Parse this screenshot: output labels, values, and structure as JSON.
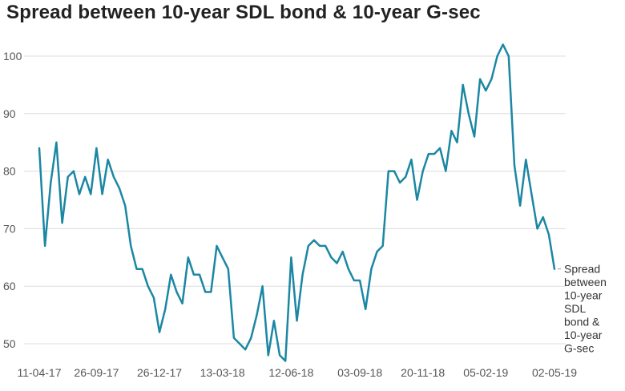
{
  "chart_data": {
    "type": "line",
    "title": "Spread between 10-year SDL bond & 10-year G-sec",
    "xlabel": "",
    "ylabel": "",
    "ylim": [
      45,
      102
    ],
    "yticks": [
      50,
      60,
      70,
      80,
      90,
      100
    ],
    "grid": true,
    "x_tick_labels": [
      "11-04-17",
      "26-09-17",
      "26-12-17",
      "13-03-18",
      "12-06-18",
      "03-09-18",
      "20-11-18",
      "05-02-19",
      "02-05-19"
    ],
    "x_tick_indices": [
      0,
      10,
      21,
      32,
      44,
      56,
      67,
      78,
      90
    ],
    "series": [
      {
        "name": "Spread between 10-year SDL bond & 10-year G-sec",
        "color": "#1b87a3",
        "label_lines": [
          "Spread",
          "between",
          "10-year",
          "SDL",
          "bond &",
          "10-year",
          "G-sec"
        ],
        "values": [
          84,
          67,
          78,
          85,
          71,
          79,
          80,
          76,
          79,
          76,
          84,
          76,
          82,
          79,
          77,
          74,
          67,
          63,
          63,
          60,
          58,
          52,
          56,
          62,
          59,
          57,
          65,
          62,
          62,
          59,
          59,
          67,
          65,
          63,
          51,
          50,
          49,
          51,
          55,
          60,
          48,
          54,
          48,
          47,
          65,
          54,
          62,
          67,
          68,
          67,
          67,
          65,
          64,
          66,
          63,
          61,
          61,
          56,
          63,
          66,
          67,
          80,
          80,
          78,
          79,
          82,
          75,
          80,
          83,
          83,
          84,
          80,
          87,
          85,
          95,
          90,
          86,
          96,
          94,
          96,
          100,
          102,
          100,
          81,
          74,
          82,
          76,
          70,
          72,
          69,
          63
        ]
      }
    ]
  }
}
